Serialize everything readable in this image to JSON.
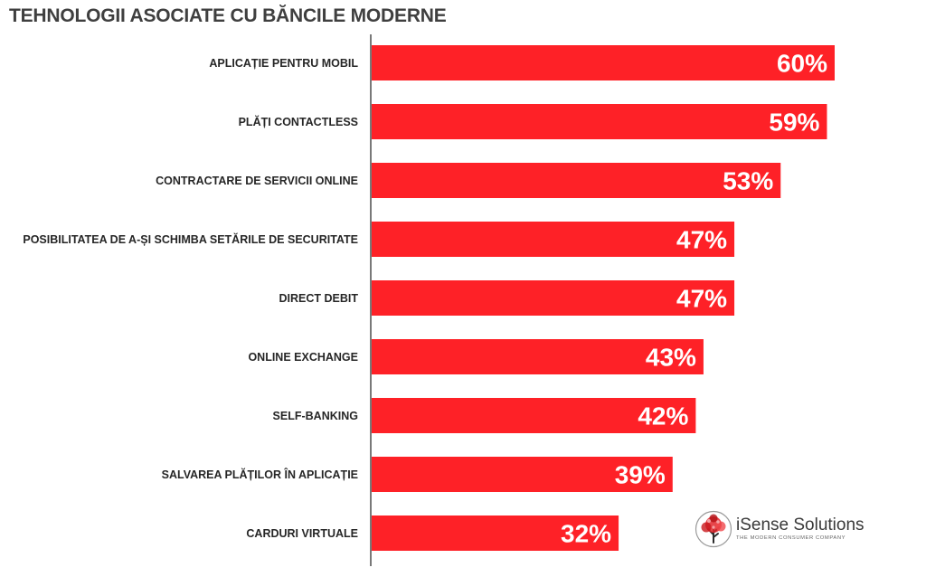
{
  "colors": {
    "bar": "#fe2127",
    "axis": "#4d4d4d",
    "value_text": "#ffffff"
  },
  "brand": {
    "name": "iSense Solutions",
    "tagline": "THE MODERN CONSUMER COMPANY",
    "icon": "tree-logo-icon"
  },
  "chart_data": {
    "type": "bar",
    "orientation": "horizontal",
    "title": "TEHNOLOGII ASOCIATE CU BĂNCILE MODERNE",
    "categories": [
      "APLICAȚIE PENTRU MOBIL",
      "PLĂȚI CONTACTLESS",
      "CONTRACTARE DE SERVICII ONLINE",
      "POSIBILITATEA DE A-ȘI SCHIMBA SETĂRILE DE SECURITATE",
      "DIRECT DEBIT",
      "ONLINE EXCHANGE",
      "SELF-BANKING",
      "SALVAREA PLĂȚILOR ÎN APLICAȚIE",
      "CARDURI VIRTUALE"
    ],
    "values": [
      60,
      59,
      53,
      47,
      47,
      43,
      42,
      39,
      32
    ],
    "value_labels": [
      "60%",
      "59%",
      "53%",
      "47%",
      "47%",
      "43%",
      "42%",
      "39%",
      "32%"
    ],
    "unit": "%",
    "xlim": [
      0,
      60
    ],
    "grid": false,
    "legend": "none"
  }
}
